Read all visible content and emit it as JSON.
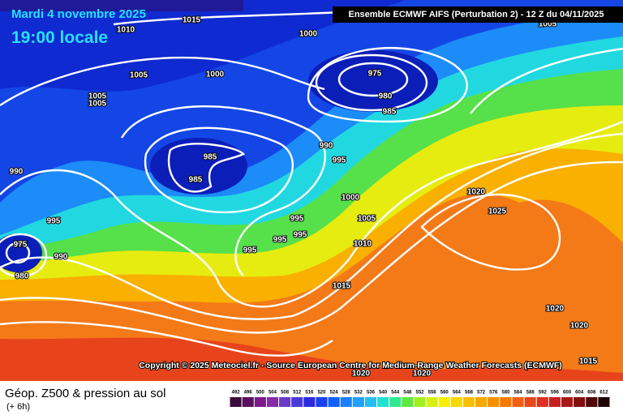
{
  "header": {
    "title": "Mardi 4 novembre 2025",
    "subtitle": "19:00 locale",
    "run": "Ensemble ECMWF AIFS  (Perturbation 2)  -  12 Z du 04/11/2025"
  },
  "isobar_labels": [
    1015,
    1010,
    1000,
    1005,
    1005,
    1000,
    1005,
    1005,
    975,
    980,
    985,
    985,
    985,
    990,
    990,
    995,
    995,
    995,
    995,
    995,
    995,
    1000,
    1005,
    1010,
    1020,
    1025,
    1015,
    975,
    980,
    990,
    1020,
    1020,
    1015,
    1020,
    1020
  ],
  "copyright": "Copyright © 2025 Meteociel.fr - Source European Centre for Medium-Range Weather Forecasts (ECMWF)",
  "legend": {
    "title": "Géop. Z500 & pression au sol",
    "lead": "(+ 6h)",
    "values": [
      492,
      496,
      500,
      504,
      508,
      512,
      516,
      520,
      524,
      528,
      532,
      536,
      540,
      544,
      548,
      552,
      556,
      560,
      564,
      568,
      572,
      576,
      580,
      584,
      588,
      592,
      596,
      600,
      604,
      608,
      612
    ],
    "colors": [
      "#3a0a3a",
      "#5a1060",
      "#7a1a8a",
      "#8a2aa8",
      "#6a3ac8",
      "#4a3ad8",
      "#2a2ae0",
      "#1a40f0",
      "#1060ff",
      "#1a80ff",
      "#20a0ff",
      "#20c0f0",
      "#20e0d0",
      "#30e890",
      "#60e840",
      "#a0f020",
      "#d8f010",
      "#f8f000",
      "#f8d800",
      "#f8c000",
      "#f8a800",
      "#f89000",
      "#f87800",
      "#f06010",
      "#e84818",
      "#e03020",
      "#c82020",
      "#a81818",
      "#801010",
      "#500808",
      "#200404"
    ]
  }
}
